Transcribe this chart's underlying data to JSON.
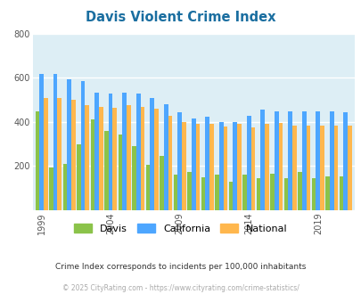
{
  "title": "Davis Violent Crime Index",
  "years": [
    1999,
    2000,
    2001,
    2002,
    2003,
    2004,
    2005,
    2006,
    2007,
    2008,
    2009,
    2010,
    2011,
    2012,
    2013,
    2014,
    2015,
    2016,
    2017,
    2018,
    2019,
    2020,
    2021
  ],
  "davis": [
    450,
    195,
    210,
    300,
    410,
    360,
    345,
    290,
    205,
    245,
    160,
    175,
    150,
    160,
    130,
    160,
    145,
    165,
    145,
    175,
    145,
    155,
    155
  ],
  "california": [
    620,
    620,
    595,
    585,
    535,
    530,
    535,
    530,
    510,
    480,
    445,
    415,
    425,
    400,
    400,
    430,
    455,
    450,
    450,
    450,
    450,
    450,
    445
  ],
  "national": [
    510,
    510,
    500,
    475,
    470,
    465,
    475,
    470,
    460,
    430,
    400,
    390,
    390,
    380,
    390,
    375,
    390,
    395,
    385,
    385,
    385,
    385,
    385
  ],
  "davis_color": "#8bc34a",
  "california_color": "#4da6ff",
  "national_color": "#ffb74d",
  "plot_bg_color": "#ddeef5",
  "ylim": [
    0,
    800
  ],
  "yticks": [
    0,
    200,
    400,
    600,
    800
  ],
  "xlabel_ticks": [
    1999,
    2004,
    2009,
    2014,
    2019
  ],
  "footnote1": "Crime Index corresponds to incidents per 100,000 inhabitants",
  "footnote2": "© 2025 CityRating.com - https://www.cityrating.com/crime-statistics/",
  "title_color": "#1a6ea0",
  "footnote1_color": "#333333",
  "footnote2_color": "#aaaaaa"
}
